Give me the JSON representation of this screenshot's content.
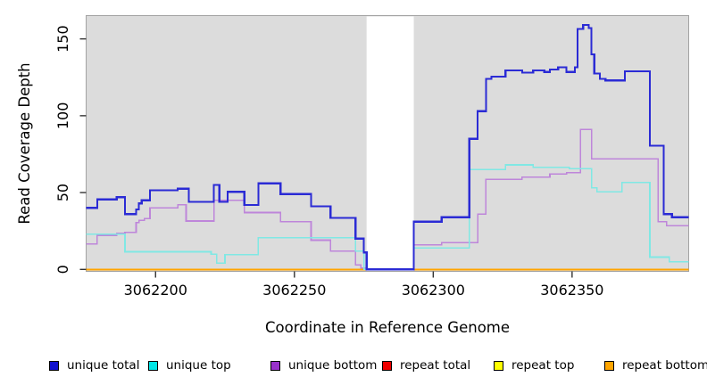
{
  "chart_data": {
    "type": "line",
    "subtype": "step-coverage",
    "title": "",
    "xlabel": "Coordinate in Reference Genome",
    "ylabel": "Read Coverage Depth",
    "x_ticks": [
      3062200,
      3062250,
      3062300,
      3062350
    ],
    "y_ticks": [
      0,
      50,
      100,
      150
    ],
    "xlim": [
      3062175,
      3062392
    ],
    "ylim": [
      0,
      165
    ],
    "grid": false,
    "legend_position": "bottom",
    "panel_bg": "#dcdcdc",
    "panel_border": "#a3a3a3",
    "coverage_gap": {
      "x_start": 3062276,
      "x_end": 3062293,
      "color": "#ffffff"
    },
    "series": [
      {
        "name": "repeat total",
        "line_color": "#ee0000",
        "line_width": 1.4,
        "layer": "below-gap",
        "points": [
          [
            3062175,
            0
          ],
          [
            3062392,
            0
          ]
        ]
      },
      {
        "name": "repeat top",
        "line_color": "#ffff00",
        "line_width": 1.4,
        "layer": "below-gap",
        "points": [
          [
            3062175,
            0
          ],
          [
            3062392,
            0
          ]
        ]
      },
      {
        "name": "repeat bottom",
        "line_color": "#ffa500",
        "line_width": 2.0,
        "layer": "below-gap",
        "points": [
          [
            3062175,
            0
          ],
          [
            3062392,
            0
          ]
        ]
      },
      {
        "name": "unique bottom",
        "line_color": "#be86da",
        "line_width": 1.6,
        "layer": "above-gap",
        "points": [
          [
            3062175,
            16.5
          ],
          [
            3062179,
            22
          ],
          [
            3062186,
            23.5
          ],
          [
            3062189,
            24
          ],
          [
            3062193,
            30.5
          ],
          [
            3062194,
            32
          ],
          [
            3062196,
            33
          ],
          [
            3062198,
            40
          ],
          [
            3062208,
            42
          ],
          [
            3062211,
            31.5
          ],
          [
            3062221,
            45
          ],
          [
            3062232,
            37
          ],
          [
            3062245,
            31
          ],
          [
            3062256,
            19
          ],
          [
            3062263,
            12
          ],
          [
            3062272,
            3
          ],
          [
            3062274,
            1
          ],
          [
            3062276,
            0
          ],
          [
            3062293,
            16
          ],
          [
            3062303,
            17.5
          ],
          [
            3062316,
            36
          ],
          [
            3062319,
            58.5
          ],
          [
            3062332,
            60
          ],
          [
            3062342,
            62
          ],
          [
            3062348,
            63
          ],
          [
            3062353,
            91
          ],
          [
            3062357,
            72
          ],
          [
            3062381,
            31
          ],
          [
            3062384,
            28.5
          ],
          [
            3062392,
            28.5
          ]
        ]
      },
      {
        "name": "unique top",
        "line_color": "#80e8e4",
        "line_width": 1.6,
        "layer": "above-gap",
        "points": [
          [
            3062175,
            23
          ],
          [
            3062189,
            11.5
          ],
          [
            3062220,
            10
          ],
          [
            3062222,
            4
          ],
          [
            3062225,
            9.5
          ],
          [
            3062237,
            20.5
          ],
          [
            3062272,
            12
          ],
          [
            3062275,
            0
          ],
          [
            3062293,
            14
          ],
          [
            3062313,
            65
          ],
          [
            3062326,
            68
          ],
          [
            3062336,
            66.5
          ],
          [
            3062349,
            65.5
          ],
          [
            3062357,
            53
          ],
          [
            3062359,
            50.5
          ],
          [
            3062368,
            56.5
          ],
          [
            3062378,
            8
          ],
          [
            3062385,
            5
          ],
          [
            3062392,
            5
          ]
        ]
      },
      {
        "name": "unique total",
        "line_color": "#2b2bd5",
        "line_width": 2.2,
        "layer": "above-gap",
        "points": [
          [
            3062175,
            40
          ],
          [
            3062179,
            45.5
          ],
          [
            3062186,
            47
          ],
          [
            3062189,
            36
          ],
          [
            3062193,
            39
          ],
          [
            3062194,
            43
          ],
          [
            3062195,
            45
          ],
          [
            3062198,
            51.5
          ],
          [
            3062208,
            52.5
          ],
          [
            3062212,
            44
          ],
          [
            3062221,
            55
          ],
          [
            3062223,
            44
          ],
          [
            3062226,
            50.5
          ],
          [
            3062232,
            42
          ],
          [
            3062237,
            56
          ],
          [
            3062245,
            49
          ],
          [
            3062256,
            41
          ],
          [
            3062263,
            33.5
          ],
          [
            3062272,
            20
          ],
          [
            3062275,
            11
          ],
          [
            3062276,
            0
          ],
          [
            3062293,
            31
          ],
          [
            3062303,
            34
          ],
          [
            3062313,
            85
          ],
          [
            3062316,
            103
          ],
          [
            3062319,
            124
          ],
          [
            3062321,
            125.5
          ],
          [
            3062326,
            129.5
          ],
          [
            3062332,
            128
          ],
          [
            3062336,
            129.5
          ],
          [
            3062340,
            128.5
          ],
          [
            3062342,
            130
          ],
          [
            3062345,
            131.5
          ],
          [
            3062348,
            128.5
          ],
          [
            3062351,
            131.5
          ],
          [
            3062352,
            156.5
          ],
          [
            3062354,
            159
          ],
          [
            3062356,
            157
          ],
          [
            3062357,
            140
          ],
          [
            3062358,
            127.5
          ],
          [
            3062360,
            124
          ],
          [
            3062362,
            123
          ],
          [
            3062369,
            129
          ],
          [
            3062378,
            80.5
          ],
          [
            3062383,
            36
          ],
          [
            3062386,
            34
          ],
          [
            3062392,
            34
          ]
        ]
      }
    ],
    "legend_items": [
      {
        "label": "unique total",
        "color": "#1010ce"
      },
      {
        "label": "unique top",
        "color": "#00e6e6"
      },
      {
        "label": "unique bottom",
        "color": "#9932cc"
      },
      {
        "label": "repeat total",
        "color": "#ee0000"
      },
      {
        "label": "repeat top",
        "color": "#ffff00"
      },
      {
        "label": "repeat bottom",
        "color": "#ffa500"
      }
    ]
  }
}
